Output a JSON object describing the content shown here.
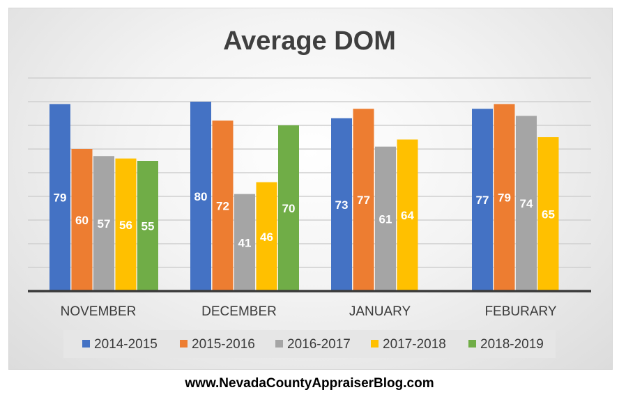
{
  "chart_data": {
    "type": "bar",
    "title": "Average DOM",
    "categories": [
      "NOVEMBER",
      "DECEMBER",
      "JANUARY",
      "FEBURARY"
    ],
    "series": [
      {
        "name": "2014-2015",
        "color": "#4472C4",
        "values": [
          79,
          80,
          73,
          77
        ]
      },
      {
        "name": "2015-2016",
        "color": "#ED7D31",
        "values": [
          60,
          72,
          77,
          79
        ]
      },
      {
        "name": "2016-2017",
        "color": "#A5A5A5",
        "values": [
          57,
          41,
          61,
          74
        ]
      },
      {
        "name": "2017-2018",
        "color": "#FFC000",
        "values": [
          56,
          46,
          64,
          65
        ]
      },
      {
        "name": "2018-2019",
        "color": "#70AD47",
        "values": [
          55,
          70,
          null,
          null
        ]
      }
    ],
    "ylim": [
      0,
      90
    ],
    "grid": true,
    "legend": "bottom",
    "xlabel": "",
    "ylabel": ""
  },
  "footer": {
    "text": "www.NevadaCountyAppraiserBlog.com"
  }
}
